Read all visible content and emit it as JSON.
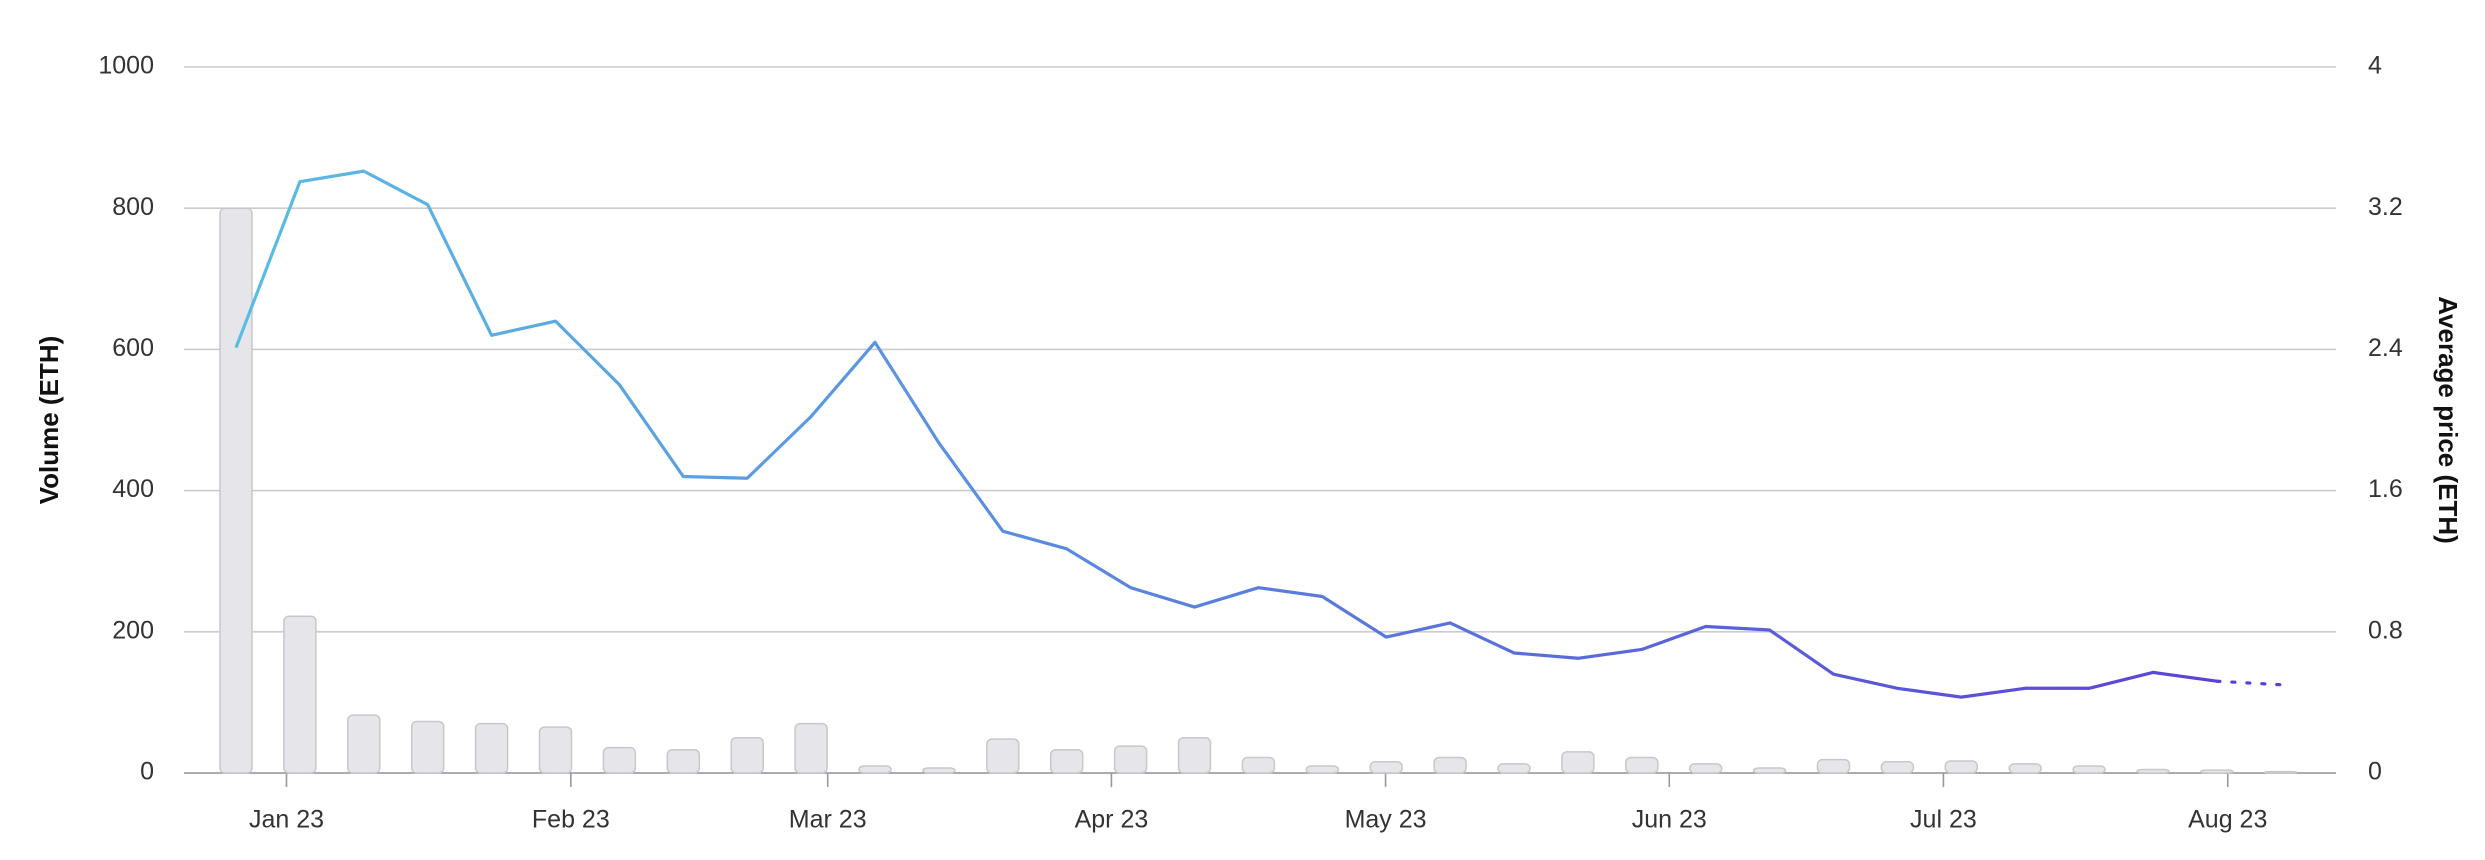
{
  "chart_data": {
    "type": "bar_line",
    "y_label": "Volume (ETH)",
    "y2_label": "Average price (ETH)",
    "categories": [
      null,
      null,
      null,
      null,
      null,
      null,
      null,
      null,
      null,
      null,
      null,
      null,
      null,
      null,
      null,
      null,
      null,
      null,
      null,
      null,
      null,
      null,
      null,
      null,
      null,
      null,
      null,
      null,
      null,
      null,
      null,
      null,
      null
    ],
    "xticks": [
      {
        "value": 0.79,
        "label": "Jan 23"
      },
      {
        "value": 5.24,
        "label": "Feb 23"
      },
      {
        "value": 9.26,
        "label": "Mar 23"
      },
      {
        "value": 13.7,
        "label": "Apr 23"
      },
      {
        "value": 17.99,
        "label": "May 23"
      },
      {
        "value": 22.43,
        "label": "Jun 23"
      },
      {
        "value": 26.72,
        "label": "Jul 23"
      },
      {
        "value": 31.17,
        "label": "Aug 23"
      }
    ],
    "series": [
      {
        "name": "Volume",
        "kind": "bar",
        "color": "#e6e6ea",
        "values": [
          800,
          222,
          82,
          73,
          70,
          65,
          36,
          33,
          50,
          70,
          10,
          7,
          48,
          33,
          38,
          50,
          22,
          10,
          16,
          22,
          13,
          30,
          22,
          13,
          7,
          19,
          16,
          17,
          13,
          10,
          5,
          4,
          2
        ]
      },
      {
        "name": "Average price",
        "kind": "line",
        "axis": "y2",
        "color_gradient": [
          "#5bbce4",
          "#5a3fd6"
        ],
        "last_segment_dotted": true,
        "values": [
          2.41,
          3.35,
          3.41,
          3.22,
          2.48,
          2.56,
          2.2,
          1.68,
          1.67,
          2.02,
          2.44,
          1.87,
          1.37,
          1.27,
          1.05,
          0.94,
          1.05,
          1.0,
          0.77,
          0.85,
          0.68,
          0.65,
          0.7,
          0.83,
          0.81,
          0.56,
          0.48,
          0.43,
          0.48,
          0.48,
          0.57,
          0.52,
          0.5
        ]
      }
    ],
    "ylim": [
      0,
      1000
    ],
    "yticks": [
      0,
      200,
      400,
      600,
      800,
      1000
    ],
    "y2lim": [
      0,
      4
    ],
    "y2ticks": [
      0,
      0.8,
      1.6,
      2.4,
      3.2,
      4
    ],
    "grid": true
  }
}
